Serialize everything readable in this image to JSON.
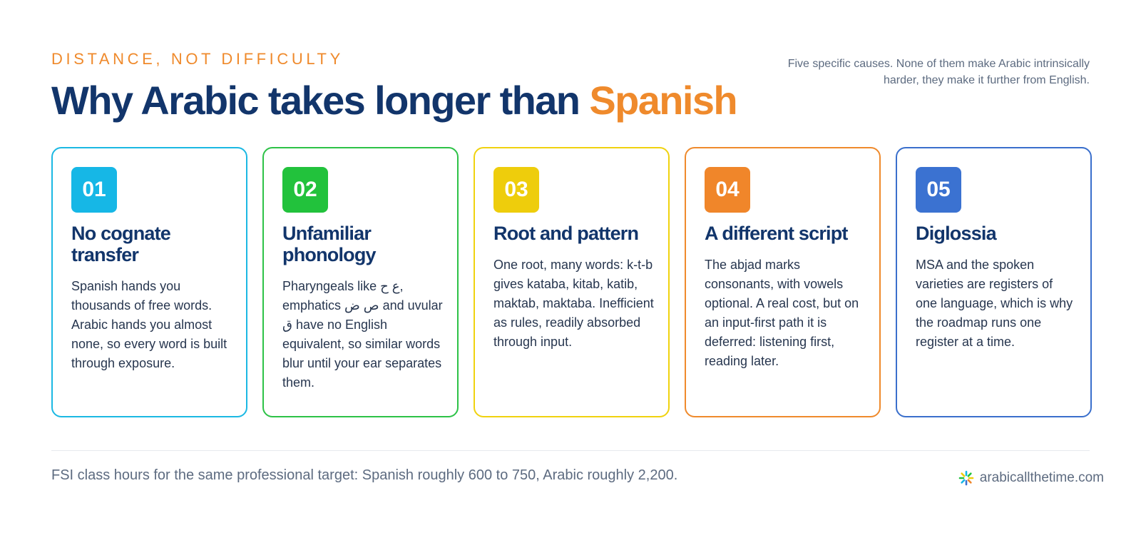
{
  "header": {
    "eyebrow": "DISTANCE, NOT DIFFICULTY",
    "headline_main": "Why Arabic takes longer than",
    "headline_accent": "Spanish",
    "intro": "Five specific causes. None of them make Arabic intrinsically harder, they make it further from English."
  },
  "cards": [
    {
      "number": "01",
      "title": "No cognate transfer",
      "body": "Spanish hands you thousands of free words. Arabic hands you almost none, so every word is built through exposure."
    },
    {
      "number": "02",
      "title": "Unfamiliar phonology",
      "body": "Pharyngeals like ع ح, emphatics ص ض and uvular ق have no English equivalent, so similar words blur until your ear separates them."
    },
    {
      "number": "03",
      "title": "Root and pattern",
      "body": "One root, many words: k-t-b gives kataba, kitab, katib, maktab, maktaba. Inefficient as rules, readily absorbed through input."
    },
    {
      "number": "04",
      "title": "A different script",
      "body": "The abjad marks consonants, with vowels optional. A real cost, but on an input-first path it is deferred: listening first, reading later."
    },
    {
      "number": "05",
      "title": "Diglossia",
      "body": "MSA and the spoken varieties are registers of one language, which is why the roadmap runs one register at a time."
    }
  ],
  "footer": {
    "note": "FSI class hours for the same professional target: Spanish roughly 600 to 750, Arabic roughly 2,200.",
    "brand": "arabicallthetime.com",
    "brand_icon": "sunburst-logo-icon"
  },
  "colors": {
    "navy": "#12356b",
    "orange": "#ef8a2c",
    "card_1": "#16b7e6",
    "card_2": "#22c23c",
    "card_3": "#eecd0c",
    "card_4": "#f0862a",
    "card_5": "#3b72d1"
  }
}
